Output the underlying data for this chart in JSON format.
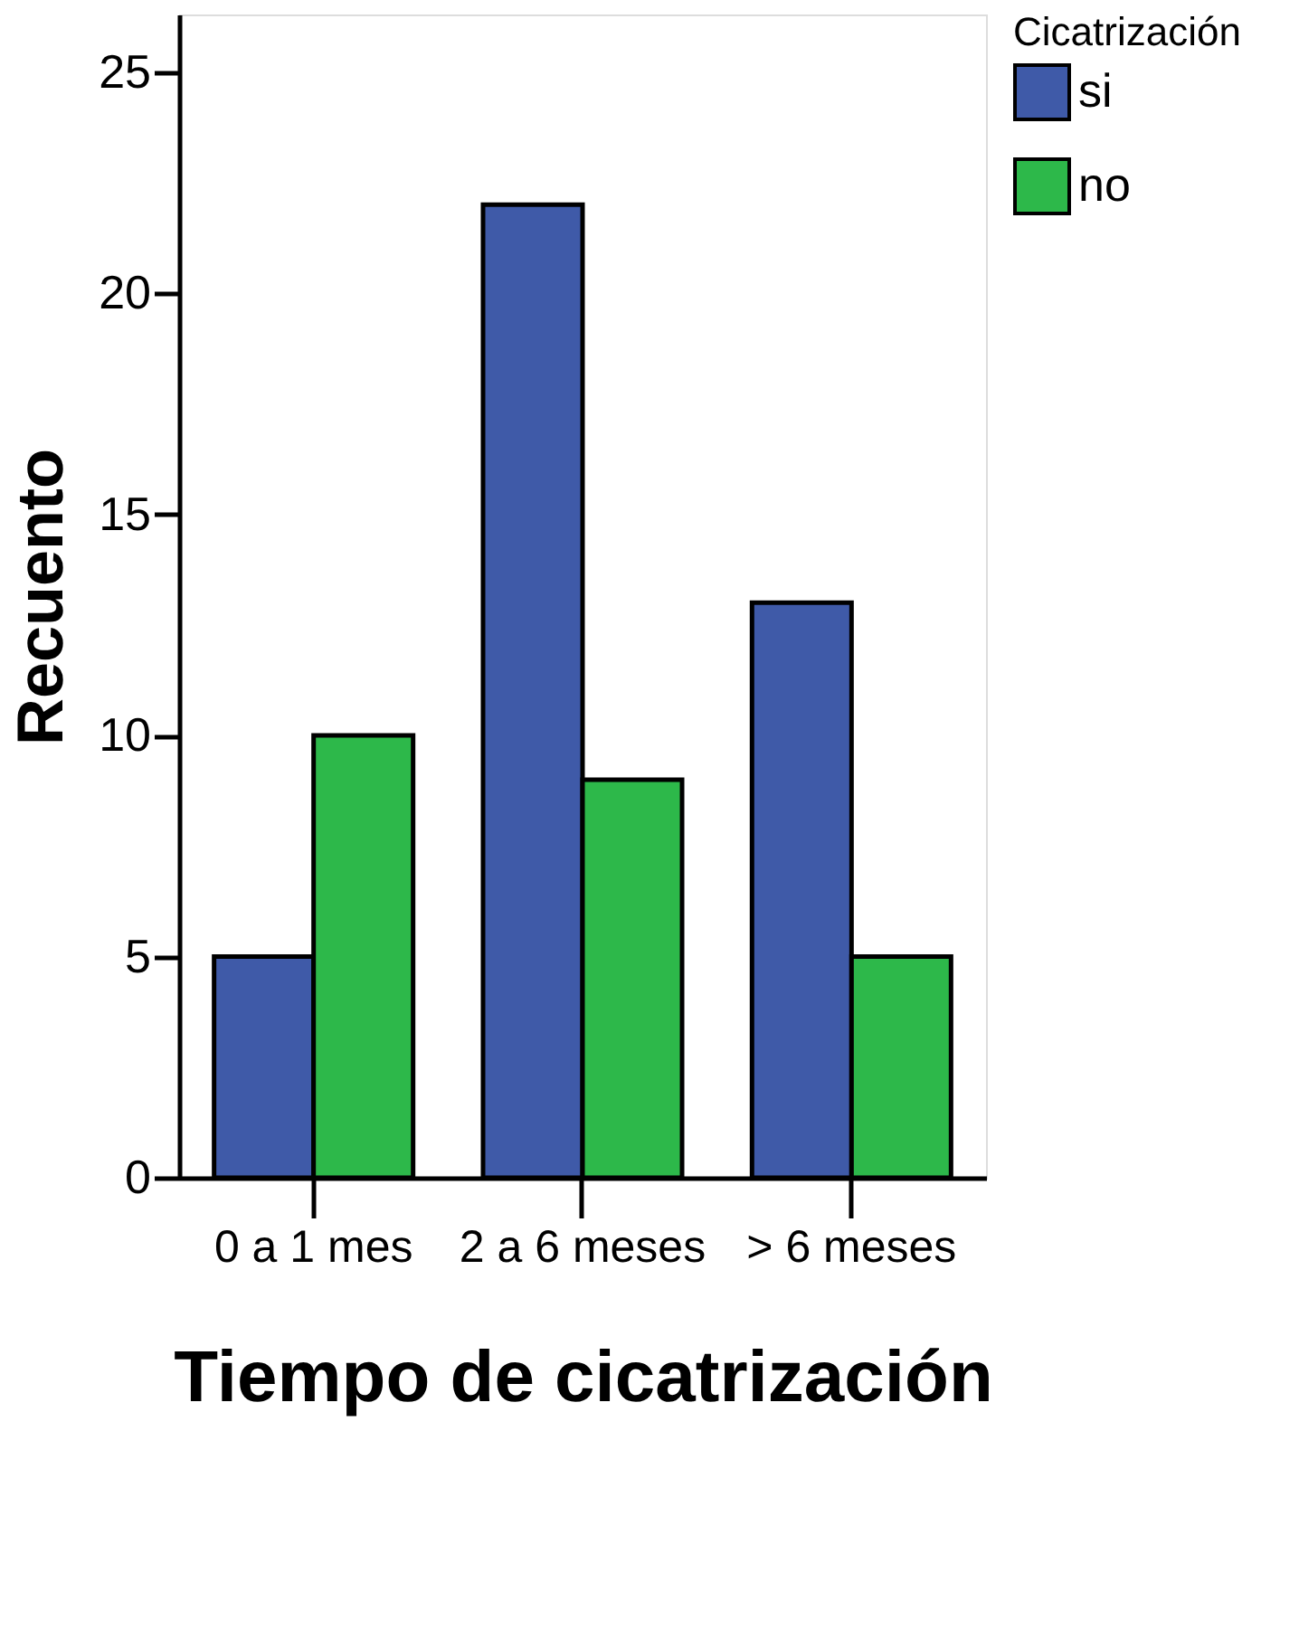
{
  "chart_data": {
    "type": "bar",
    "xlabel": "Tiempo de cicatrización",
    "ylabel": "Recuento",
    "legend_title": "Cicatrización",
    "categories": [
      "0 a 1 mes",
      "2 a 6 meses",
      "> 6 meses"
    ],
    "series": [
      {
        "name": "si",
        "color": "#3f5aa8",
        "values": [
          5,
          22,
          13
        ]
      },
      {
        "name": "no",
        "color": "#2db84a",
        "values": [
          10,
          9,
          5
        ]
      }
    ],
    "ylim": [
      0,
      26.3
    ],
    "yticks": [
      0,
      5,
      10,
      15,
      20,
      25
    ],
    "grid": false,
    "legend": "right"
  }
}
